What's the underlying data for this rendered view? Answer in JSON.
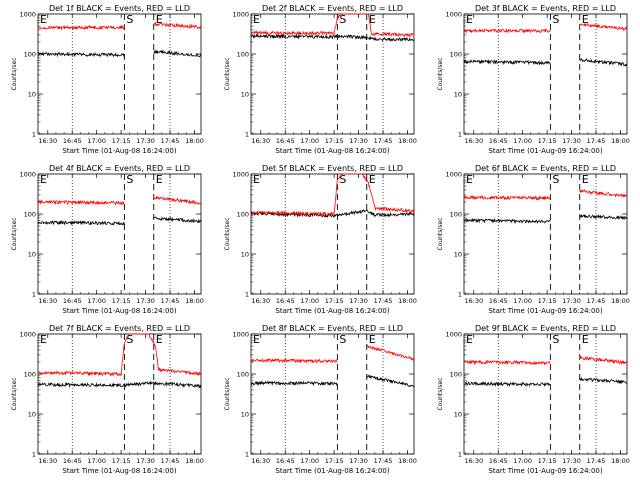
{
  "figure": {
    "background": "#ffffff",
    "colors": {
      "events": "#000000",
      "lld": "#ff0000",
      "axes": "#000000"
    }
  },
  "chart_data": [
    {
      "type": "line",
      "title": "Det 1f BLACK = Events, RED = LLD",
      "xlabel": "Start Time (01-Aug-08 16:24:00)",
      "ylabel": "Counts/sec",
      "yscale": "log",
      "xlim": [
        "16:24",
        "18:04"
      ],
      "ylim": [
        1,
        1000
      ],
      "xticks": [
        "16:30",
        "16:45",
        "17:00",
        "17:15",
        "17:30",
        "17:45",
        "18:00"
      ],
      "yticks": [
        "1",
        "10",
        "100",
        "1000"
      ],
      "grid": "dotted vertical lines at 16:45 and 17:45",
      "markers": [
        {
          "label": "S",
          "time": "17:17"
        },
        {
          "label": "E",
          "time": "17:35"
        }
      ],
      "gap": {
        "start": "17:17",
        "end": "17:35"
      },
      "series": [
        {
          "color": "#000000",
          "x": [
            "16:24",
            "17:17",
            "17:35",
            "18:04"
          ],
          "values": [
            100,
            95,
            115,
            92
          ]
        },
        {
          "color": "#ff0000",
          "x": [
            "16:24",
            "17:17",
            "17:35",
            "18:04"
          ],
          "values": [
            460,
            460,
            560,
            470
          ]
        }
      ]
    },
    {
      "type": "line",
      "title": "Det 2f BLACK = Events, RED = LLD",
      "xlabel": "Start Time (01-Aug-08 16:24:00)",
      "ylabel": "Counts/sec",
      "yscale": "log",
      "xlim": [
        "16:24",
        "18:04"
      ],
      "ylim": [
        1,
        1000
      ],
      "xticks": [
        "16:30",
        "16:45",
        "17:00",
        "17:15",
        "17:30",
        "17:45",
        "18:00"
      ],
      "yticks": [
        "1",
        "10",
        "100",
        "1000"
      ],
      "grid": "dotted vertical lines at 16:45 and 17:45",
      "markers": [
        {
          "label": "S",
          "time": "17:17"
        },
        {
          "label": "E",
          "time": "17:35"
        }
      ],
      "series": [
        {
          "color": "#000000",
          "x": [
            "16:24",
            "17:15",
            "17:16",
            "17:34",
            "17:38",
            "18:04"
          ],
          "values": [
            280,
            270,
            280,
            260,
            240,
            230
          ]
        },
        {
          "color": "#ff0000",
          "x": [
            "16:24",
            "17:15",
            "17:17",
            "17:20",
            "17:32",
            "17:36",
            "17:38",
            "18:04"
          ],
          "values": [
            340,
            330,
            800,
            1000,
            1000,
            1000,
            320,
            300
          ]
        }
      ]
    },
    {
      "type": "line",
      "title": "Det 3f BLACK = Events, RED = LLD",
      "xlabel": "Start Time (01-Aug-09 16:24:00)",
      "ylabel": "Counts/sec",
      "yscale": "log",
      "xlim": [
        "16:24",
        "18:04"
      ],
      "ylim": [
        1,
        1000
      ],
      "xticks": [
        "16:30",
        "16:45",
        "17:00",
        "17:15",
        "17:30",
        "17:45",
        "18:00"
      ],
      "yticks": [
        "1",
        "10",
        "100",
        "1000"
      ],
      "grid": "dotted vertical lines at 16:45 and 17:45",
      "markers": [
        {
          "label": "S",
          "time": "17:17"
        },
        {
          "label": "E",
          "time": "17:35"
        }
      ],
      "gap": {
        "start": "17:17",
        "end": "17:35"
      },
      "series": [
        {
          "color": "#000000",
          "x": [
            "16:24",
            "17:17",
            "17:35",
            "18:04"
          ],
          "values": [
            65,
            60,
            72,
            55
          ]
        },
        {
          "color": "#ff0000",
          "x": [
            "16:24",
            "17:17",
            "17:35",
            "18:04"
          ],
          "values": [
            380,
            380,
            560,
            420
          ]
        }
      ]
    },
    {
      "type": "line",
      "title": "Det 4f BLACK = Events, RED = LLD",
      "xlabel": "Start Time (01-Aug-08 16:24:00)",
      "ylabel": "Counts/sec",
      "yscale": "log",
      "xlim": [
        "16:24",
        "18:04"
      ],
      "ylim": [
        1,
        1000
      ],
      "xticks": [
        "16:30",
        "16:45",
        "17:00",
        "17:15",
        "17:30",
        "17:45",
        "18:00"
      ],
      "yticks": [
        "1",
        "10",
        "100",
        "1000"
      ],
      "grid": "dotted vertical lines at 16:45 and 17:45",
      "markers": [
        {
          "label": "S",
          "time": "17:17"
        },
        {
          "label": "E",
          "time": "17:35"
        }
      ],
      "gap": {
        "start": "17:17",
        "end": "17:35"
      },
      "series": [
        {
          "color": "#000000",
          "x": [
            "16:24",
            "17:17",
            "17:35",
            "18:04"
          ],
          "values": [
            62,
            58,
            80,
            65
          ]
        },
        {
          "color": "#ff0000",
          "x": [
            "16:24",
            "17:17",
            "17:35",
            "18:04"
          ],
          "values": [
            200,
            190,
            260,
            190
          ]
        }
      ]
    },
    {
      "type": "line",
      "title": "Det 5f BLACK = Events, RED = LLD",
      "xlabel": "Start Time (01-Aug-08 16:24:00)",
      "ylabel": "Counts/sec",
      "yscale": "log",
      "xlim": [
        "16:24",
        "18:04"
      ],
      "ylim": [
        1,
        1000
      ],
      "xticks": [
        "16:30",
        "16:45",
        "17:00",
        "17:15",
        "17:30",
        "17:45",
        "18:00"
      ],
      "yticks": [
        "1",
        "10",
        "100",
        "1000"
      ],
      "grid": "dotted vertical lines at 16:45 and 17:45",
      "markers": [
        {
          "label": "S",
          "time": "17:17"
        },
        {
          "label": "E",
          "time": "17:35"
        }
      ],
      "series": [
        {
          "color": "#000000",
          "x": [
            "16:24",
            "17:15",
            "17:34",
            "17:40",
            "18:04"
          ],
          "values": [
            105,
            90,
            120,
            95,
            100
          ]
        },
        {
          "color": "#ff0000",
          "x": [
            "16:24",
            "17:15",
            "17:17",
            "17:20",
            "17:32",
            "17:36",
            "17:40",
            "18:04"
          ],
          "values": [
            110,
            100,
            700,
            1000,
            1000,
            600,
            140,
            120
          ]
        }
      ]
    },
    {
      "type": "line",
      "title": "Det 6f BLACK = Events, RED = LLD",
      "xlabel": "Start Time (01-Aug-09 16:24:00)",
      "ylabel": "Counts/sec",
      "yscale": "log",
      "xlim": [
        "16:24",
        "18:04"
      ],
      "ylim": [
        1,
        1000
      ],
      "xticks": [
        "16:30",
        "16:45",
        "17:00",
        "17:15",
        "17:30",
        "17:45",
        "18:00"
      ],
      "yticks": [
        "1",
        "10",
        "100",
        "1000"
      ],
      "grid": "dotted vertical lines at 16:45 and 17:45",
      "markers": [
        {
          "label": "S",
          "time": "17:17"
        },
        {
          "label": "E",
          "time": "17:35"
        }
      ],
      "gap": {
        "start": "17:17",
        "end": "17:35"
      },
      "series": [
        {
          "color": "#000000",
          "x": [
            "16:24",
            "17:17",
            "17:35",
            "18:04"
          ],
          "values": [
            70,
            65,
            90,
            80
          ]
        },
        {
          "color": "#ff0000",
          "x": [
            "16:24",
            "17:17",
            "17:35",
            "18:04"
          ],
          "values": [
            260,
            250,
            380,
            280
          ]
        }
      ]
    },
    {
      "type": "line",
      "title": "Det 7f BLACK = Events, RED = LLD",
      "xlabel": "Start Time (01-Aug-08 16:24:00)",
      "ylabel": "Counts/sec",
      "yscale": "log",
      "xlim": [
        "16:24",
        "18:04"
      ],
      "ylim": [
        1,
        1000
      ],
      "xticks": [
        "16:30",
        "16:45",
        "17:00",
        "17:15",
        "17:30",
        "17:45",
        "18:00"
      ],
      "yticks": [
        "1",
        "10",
        "100",
        "1000"
      ],
      "grid": "dotted vertical lines at 16:45 and 17:45",
      "markers": [
        {
          "label": "S",
          "time": "17:17"
        },
        {
          "label": "E",
          "time": "17:35"
        }
      ],
      "series": [
        {
          "color": "#000000",
          "x": [
            "16:24",
            "17:15",
            "17:34",
            "18:04"
          ],
          "values": [
            55,
            52,
            60,
            50
          ]
        },
        {
          "color": "#ff0000",
          "x": [
            "16:24",
            "17:15",
            "17:17",
            "17:20",
            "17:32",
            "17:36",
            "17:38",
            "18:04"
          ],
          "values": [
            110,
            100,
            600,
            1000,
            1000,
            500,
            130,
            100
          ]
        }
      ]
    },
    {
      "type": "line",
      "title": "Det 8f BLACK = Events, RED = LLD",
      "xlabel": "Start Time (01-Aug-08 16:24:00)",
      "ylabel": "Counts/sec",
      "yscale": "log",
      "xlim": [
        "16:24",
        "18:04"
      ],
      "ylim": [
        1,
        1000
      ],
      "xticks": [
        "16:30",
        "16:45",
        "17:00",
        "17:15",
        "17:30",
        "17:45",
        "18:00"
      ],
      "yticks": [
        "1",
        "10",
        "100",
        "1000"
      ],
      "grid": "dotted vertical lines at 16:45 and 17:45",
      "markers": [
        {
          "label": "S",
          "time": "17:17"
        },
        {
          "label": "E",
          "time": "17:35"
        }
      ],
      "gap": {
        "start": "17:17",
        "end": "17:35"
      },
      "series": [
        {
          "color": "#000000",
          "x": [
            "16:24",
            "17:17",
            "17:35",
            "18:04"
          ],
          "values": [
            60,
            58,
            90,
            50
          ]
        },
        {
          "color": "#ff0000",
          "x": [
            "16:24",
            "17:17",
            "17:35",
            "18:04"
          ],
          "values": [
            220,
            210,
            500,
            230
          ]
        }
      ]
    },
    {
      "type": "line",
      "title": "Det 9f BLACK = Events, RED = LLD",
      "xlabel": "Start Time (01-Aug-09 16:24:00)",
      "ylabel": "Counts/sec",
      "yscale": "log",
      "xlim": [
        "16:24",
        "18:04"
      ],
      "ylim": [
        1,
        1000
      ],
      "xticks": [
        "16:30",
        "16:45",
        "17:00",
        "17:15",
        "17:30",
        "17:45",
        "18:00"
      ],
      "yticks": [
        "1",
        "10",
        "100",
        "1000"
      ],
      "grid": "dotted vertical lines at 16:45 and 17:45",
      "markers": [
        {
          "label": "S",
          "time": "17:17"
        },
        {
          "label": "E",
          "time": "17:35"
        }
      ],
      "gap": {
        "start": "17:17",
        "end": "17:35"
      },
      "series": [
        {
          "color": "#000000",
          "x": [
            "16:24",
            "17:17",
            "17:35",
            "18:04"
          ],
          "values": [
            58,
            55,
            75,
            62
          ]
        },
        {
          "color": "#ff0000",
          "x": [
            "16:24",
            "17:17",
            "17:35",
            "18:04"
          ],
          "values": [
            200,
            190,
            260,
            190
          ]
        }
      ]
    }
  ]
}
